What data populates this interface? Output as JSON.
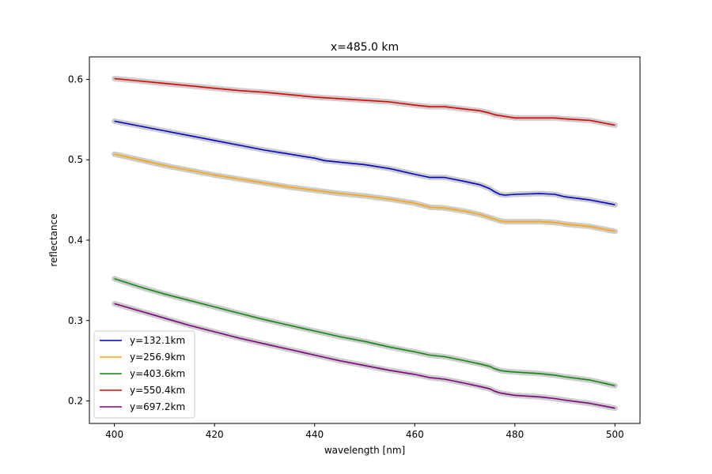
{
  "chart_data": {
    "type": "line",
    "title": "x=485.0 km",
    "xlabel": "wavelength [nm]",
    "ylabel": "reflectance",
    "xlim": [
      395,
      505
    ],
    "ylim": [
      0.172,
      0.628
    ],
    "xticks": [
      400,
      420,
      440,
      460,
      480,
      500
    ],
    "yticks": [
      0.2,
      0.3,
      0.4,
      0.5,
      0.6
    ],
    "xtick_labels": [
      "400",
      "420",
      "440",
      "460",
      "480",
      "500"
    ],
    "ytick_labels": [
      "0.2",
      "0.3",
      "0.4",
      "0.5",
      "0.6"
    ],
    "grid": false,
    "legend_position": "lower-left",
    "band_color": "#bbbbbb",
    "series": [
      {
        "name": "y=132.1km",
        "color": "#0000cc",
        "x": [
          400,
          405,
          410,
          415,
          420,
          425,
          430,
          435,
          440,
          442,
          445,
          450,
          455,
          460,
          463,
          466,
          470,
          473,
          475,
          476,
          477,
          478,
          480,
          485,
          488,
          490,
          495,
          500
        ],
        "y": [
          0.548,
          0.542,
          0.536,
          0.53,
          0.524,
          0.518,
          0.512,
          0.507,
          0.502,
          0.499,
          0.497,
          0.494,
          0.489,
          0.482,
          0.478,
          0.478,
          0.473,
          0.469,
          0.464,
          0.46,
          0.457,
          0.456,
          0.457,
          0.458,
          0.457,
          0.454,
          0.45,
          0.444
        ]
      },
      {
        "name": "y=256.9km",
        "color": "#ffa500",
        "x": [
          400,
          405,
          410,
          415,
          420,
          425,
          430,
          435,
          440,
          445,
          450,
          455,
          460,
          463,
          466,
          470,
          473,
          475,
          476,
          477,
          478,
          480,
          485,
          488,
          490,
          495,
          500
        ],
        "y": [
          0.507,
          0.5,
          0.493,
          0.487,
          0.481,
          0.476,
          0.471,
          0.466,
          0.462,
          0.458,
          0.455,
          0.451,
          0.446,
          0.441,
          0.44,
          0.436,
          0.432,
          0.428,
          0.426,
          0.424,
          0.423,
          0.423,
          0.423,
          0.422,
          0.42,
          0.417,
          0.411
        ]
      },
      {
        "name": "y=403.6km",
        "color": "#118811",
        "x": [
          400,
          405,
          410,
          415,
          420,
          425,
          430,
          435,
          440,
          445,
          450,
          455,
          460,
          463,
          466,
          470,
          473,
          475,
          476,
          477,
          478,
          480,
          485,
          488,
          490,
          495,
          500
        ],
        "y": [
          0.352,
          0.342,
          0.333,
          0.325,
          0.317,
          0.309,
          0.301,
          0.294,
          0.287,
          0.28,
          0.274,
          0.267,
          0.261,
          0.257,
          0.255,
          0.25,
          0.246,
          0.243,
          0.24,
          0.238,
          0.237,
          0.236,
          0.234,
          0.232,
          0.23,
          0.226,
          0.219
        ]
      },
      {
        "name": "y=550.4km",
        "color": "#dd0000",
        "x": [
          400,
          405,
          410,
          415,
          420,
          425,
          430,
          435,
          440,
          445,
          450,
          455,
          460,
          463,
          466,
          470,
          473,
          475,
          476,
          477,
          478,
          480,
          485,
          488,
          490,
          495,
          500
        ],
        "y": [
          0.601,
          0.598,
          0.595,
          0.592,
          0.589,
          0.586,
          0.584,
          0.581,
          0.578,
          0.576,
          0.574,
          0.572,
          0.568,
          0.566,
          0.566,
          0.563,
          0.561,
          0.558,
          0.556,
          0.555,
          0.554,
          0.552,
          0.552,
          0.552,
          0.551,
          0.549,
          0.543
        ]
      },
      {
        "name": "y=697.2km",
        "color": "#800080",
        "x": [
          400,
          405,
          410,
          415,
          420,
          425,
          430,
          435,
          440,
          445,
          450,
          455,
          460,
          463,
          466,
          470,
          473,
          475,
          476,
          477,
          478,
          480,
          485,
          488,
          490,
          495,
          500
        ],
        "y": [
          0.321,
          0.312,
          0.303,
          0.294,
          0.286,
          0.278,
          0.271,
          0.264,
          0.257,
          0.25,
          0.244,
          0.238,
          0.233,
          0.229,
          0.227,
          0.222,
          0.218,
          0.215,
          0.212,
          0.21,
          0.209,
          0.207,
          0.205,
          0.203,
          0.201,
          0.197,
          0.191
        ]
      }
    ]
  }
}
